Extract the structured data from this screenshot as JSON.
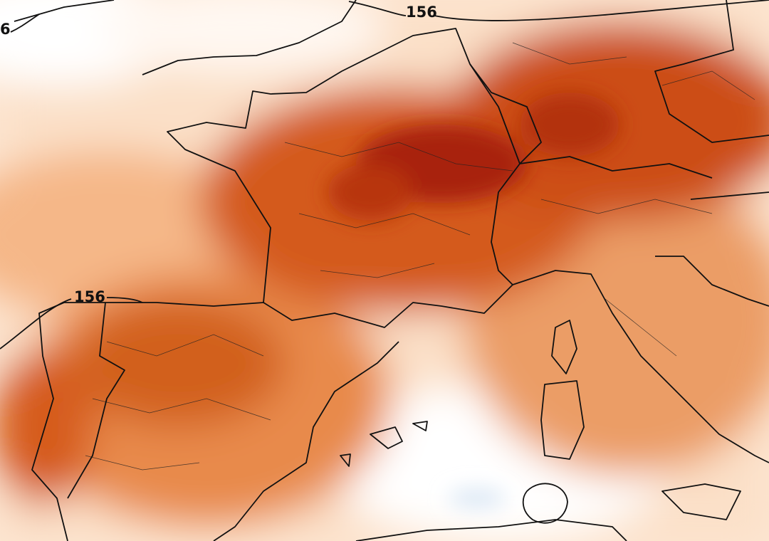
{
  "contour_labels": [
    "156",
    "156",
    "6"
  ]
}
